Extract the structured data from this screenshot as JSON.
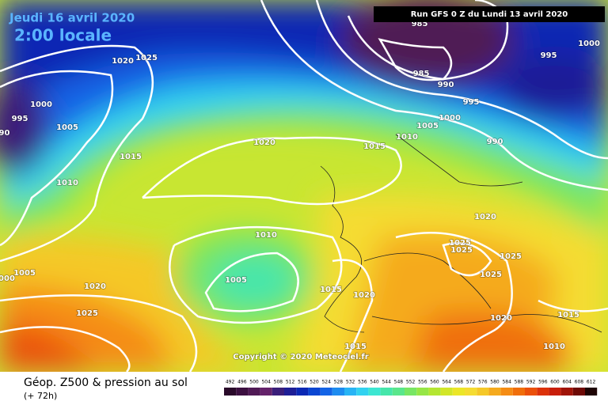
{
  "header": {
    "date": "Jeudi 16 avril 2020",
    "time": "2:00 locale",
    "run": "Run GFS 0 Z du Lundi 13 avril 2020"
  },
  "copyright": "Copyright © 2020 Meteociel.fr",
  "footer": {
    "title": "Géop. Z500 & pression au sol",
    "lead": "(+ 72h)"
  },
  "isobar_labels": [
    "985",
    "1020",
    "1025",
    "995",
    "1000",
    "985",
    "990",
    "995",
    "1000",
    "995",
    "990",
    "1005",
    "1000",
    "1005",
    "1010",
    "990",
    "1020",
    "1015",
    "1015",
    "1010",
    "1020",
    "1010",
    "1025",
    "1025",
    "1025",
    "1005",
    "1000",
    "1005",
    "1025",
    "1020",
    "1015",
    "1020",
    "1025",
    "1020",
    "1015",
    "1015",
    "1010"
  ],
  "scale": {
    "labels": [
      "492",
      "496",
      "500",
      "504",
      "508",
      "512",
      "516",
      "520",
      "524",
      "528",
      "532",
      "536",
      "540",
      "544",
      "548",
      "552",
      "556",
      "560",
      "564",
      "568",
      "572",
      "576",
      "580",
      "584",
      "588",
      "592",
      "596",
      "600",
      "604",
      "608",
      "612"
    ],
    "colors": [
      "#2a0a2a",
      "#3c1040",
      "#501a55",
      "#64226a",
      "#3a1e7a",
      "#1e1e96",
      "#0a28b4",
      "#0a46d2",
      "#1464e6",
      "#1e8cf0",
      "#28b4f5",
      "#32d2f0",
      "#3ce6d2",
      "#46e6aa",
      "#5ae68c",
      "#78e664",
      "#96e646",
      "#b4e632",
      "#d2e628",
      "#ebe628",
      "#f5dc32",
      "#f5c828",
      "#f5aa1e",
      "#f58c14",
      "#f06e0a",
      "#eb500a",
      "#dc320a",
      "#c81e0a",
      "#a01408",
      "#6e0a06",
      "#1e0404"
    ]
  }
}
